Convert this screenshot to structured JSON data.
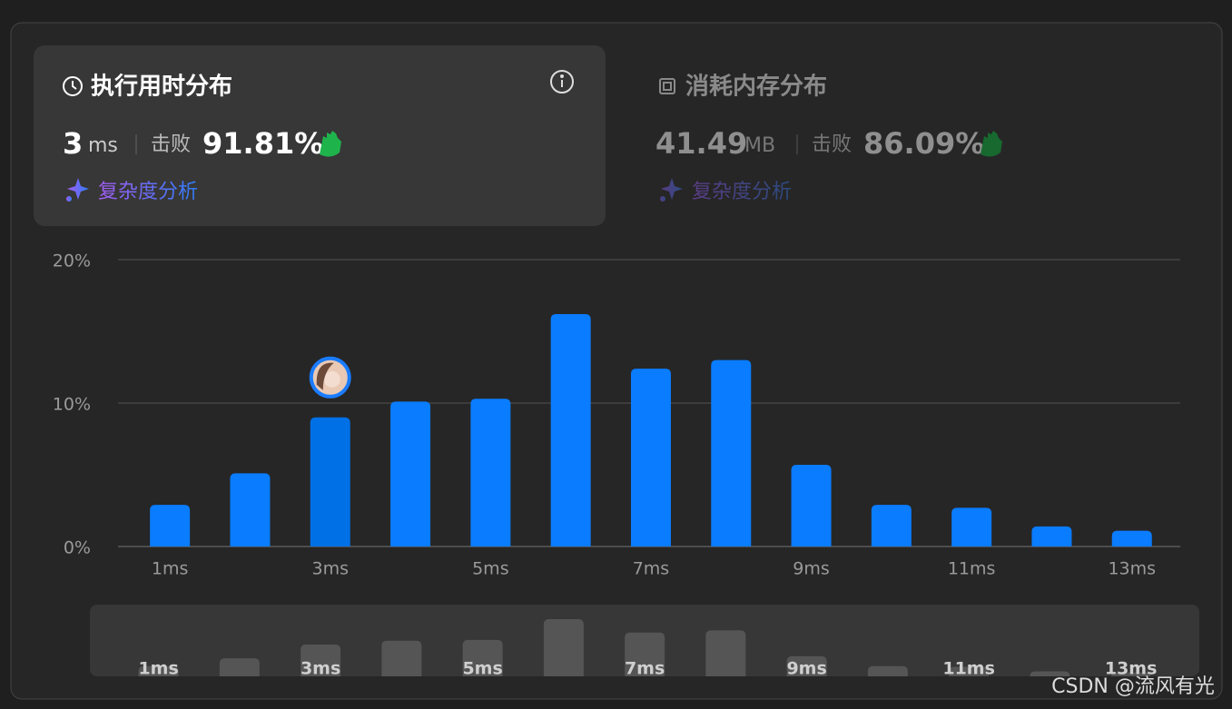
{
  "runtime_panel": {
    "title": "执行用时分布",
    "value": "3",
    "unit": "ms",
    "beats_label": "击败",
    "beats": "91.81%",
    "analysis": "复杂度分析"
  },
  "memory_panel": {
    "title": "消耗内存分布",
    "value": "41.49",
    "unit": "MB",
    "beats_label": "击败",
    "beats": "86.09%",
    "analysis": "复杂度分析"
  },
  "chart_data": {
    "type": "bar",
    "categories": [
      "1ms",
      null,
      "3ms",
      null,
      "5ms",
      null,
      "7ms",
      null,
      "9ms",
      null,
      "11ms",
      null,
      "13ms"
    ],
    "values": [
      2.9,
      5.1,
      9.0,
      10.1,
      10.3,
      16.2,
      12.4,
      13.0,
      5.7,
      2.9,
      2.7,
      1.4,
      1.1
    ],
    "colors": [
      "#0a7cff",
      "#0a7cff",
      "#0070e6",
      "#0a7cff",
      "#0a7cff",
      "#0a7cff",
      "#0a7cff",
      "#0a7cff",
      "#0a7cff",
      "#0a7cff",
      "#0a7cff",
      "#0a7cff",
      "#0a7cff"
    ],
    "ylim": [
      0,
      20
    ],
    "yticks": [
      {
        "value": 0,
        "label": "0%"
      },
      {
        "value": 10,
        "label": "10%"
      },
      {
        "value": 20,
        "label": "20%"
      }
    ],
    "grid": true
  },
  "watermark": "CSDN @流风有光"
}
